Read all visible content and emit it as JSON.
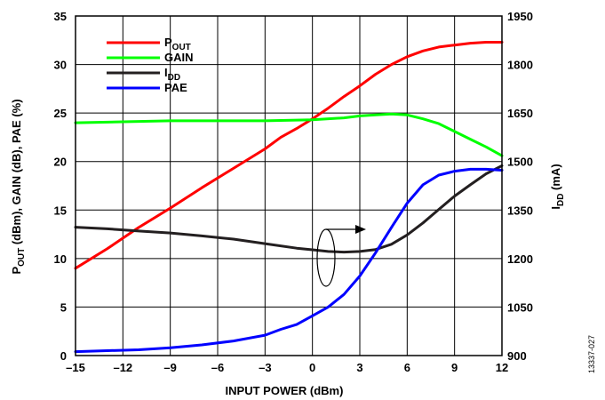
{
  "chart_data": {
    "type": "line",
    "x_label": "INPUT POWER (dBm)",
    "y_left_label_main": "P",
    "y_left_label_sub": "OUT",
    "y_left_label_rest": " (dBm), GAIN (dB), PAE (%)",
    "y_right_label_main": "I",
    "y_right_label_sub": "DD",
    "y_right_label_rest": " (mA)",
    "figure_id": "13337-027",
    "xlim": [
      -15,
      12
    ],
    "ylim_left": [
      0,
      35
    ],
    "ylim_right": [
      900,
      1950
    ],
    "x_ticks": [
      "–15",
      "–12",
      "–9",
      "–6",
      "–3",
      "0",
      "3",
      "6",
      "9",
      "12"
    ],
    "y_left_ticks": [
      "0",
      "5",
      "10",
      "15",
      "20",
      "25",
      "30",
      "35"
    ],
    "y_right_ticks": [
      "900",
      "1050",
      "1200",
      "1350",
      "1500",
      "1650",
      "1800",
      "1950"
    ],
    "grid": true,
    "legend_position": "top-left",
    "series": [
      {
        "name": "P",
        "name_sub": "OUT",
        "color": "#ff0000",
        "axis": "left",
        "x": [
          -15,
          -13,
          -11,
          -9,
          -7,
          -5,
          -3,
          -2,
          -1,
          0,
          1,
          2,
          3,
          4,
          5,
          6,
          7,
          8,
          9,
          10,
          11,
          12
        ],
        "y": [
          9.0,
          11.0,
          13.2,
          15.2,
          17.3,
          19.3,
          21.3,
          22.5,
          23.4,
          24.4,
          25.5,
          26.7,
          27.8,
          29.0,
          30.0,
          30.8,
          31.4,
          31.8,
          32.0,
          32.2,
          32.3,
          32.3
        ]
      },
      {
        "name": "GAIN",
        "color": "#00ff00",
        "axis": "left",
        "x": [
          -15,
          -12,
          -9,
          -6,
          -3,
          0,
          2,
          3,
          4,
          5,
          6,
          7,
          8,
          9,
          10,
          11,
          12
        ],
        "y": [
          24.0,
          24.1,
          24.2,
          24.2,
          24.2,
          24.3,
          24.5,
          24.7,
          24.8,
          24.9,
          24.8,
          24.4,
          23.9,
          23.1,
          22.3,
          21.5,
          20.6
        ]
      },
      {
        "name": "I",
        "name_sub": "DD",
        "color": "#231f20",
        "axis": "right",
        "x": [
          -15,
          -13,
          -11,
          -9,
          -7,
          -5,
          -3,
          -1,
          0,
          1,
          2,
          3,
          4,
          5,
          6,
          7,
          8,
          9,
          10,
          11,
          12
        ],
        "y": [
          1297,
          1292,
          1285,
          1279,
          1270,
          1260,
          1246,
          1232,
          1227,
          1222,
          1220,
          1222,
          1228,
          1244,
          1273,
          1310,
          1352,
          1393,
          1428,
          1462,
          1487
        ]
      },
      {
        "name": "PAE",
        "color": "#0000ff",
        "axis": "left",
        "x": [
          -15,
          -13,
          -11,
          -9,
          -7,
          -5,
          -3,
          -2,
          -1,
          0,
          1,
          2,
          3,
          4,
          5,
          6,
          7,
          8,
          9,
          10,
          11,
          12
        ],
        "y": [
          0.4,
          0.5,
          0.6,
          0.8,
          1.1,
          1.5,
          2.1,
          2.7,
          3.2,
          4.1,
          5.0,
          6.3,
          8.2,
          10.6,
          13.2,
          15.7,
          17.6,
          18.6,
          19.0,
          19.2,
          19.2,
          19.1
        ]
      }
    ],
    "annotation": "arrow pointing to right axis from IDD curve"
  }
}
